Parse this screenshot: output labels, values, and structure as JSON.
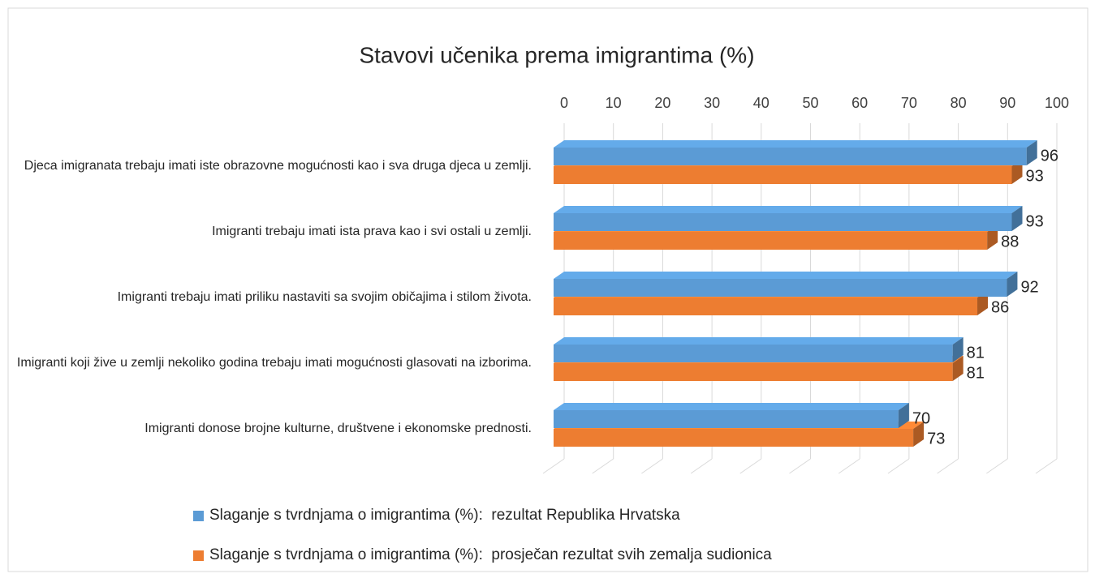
{
  "chart_data": {
    "type": "bar3d_horizontal",
    "title": "Stavovi učenika prema imigrantima (%)",
    "categories": [
      "Djeca imigranata trebaju imati iste obrazovne mogućnosti kao i sva druga djeca u zemlji.",
      "Imigranti trebaju imati ista prava kao i svi ostali u zemlji.",
      "Imigranti trebaju imati priliku nastaviti sa svojim običajima i stilom života.",
      "Imigranti koji žive u zemlji nekoliko godina trebaju imati mogućnosti glasovati na izborima.",
      "Imigranti donose brojne kulturne, društvene i ekonomske prednosti."
    ],
    "series": [
      {
        "name": "Slaganje s tvrdnjama o imigrantima (%):  rezultat Republika Hrvatska",
        "color": "#5b9bd5",
        "values": [
          96,
          93,
          92,
          81,
          70
        ]
      },
      {
        "name": "Slaganje s tvrdnjama o imigrantima (%):  prosječan rezultat svih zemalja sudionica",
        "color": "#ed7d31",
        "values": [
          93,
          88,
          86,
          81,
          73
        ]
      }
    ],
    "xlim": [
      0,
      100
    ],
    "xticks": [
      0,
      10,
      20,
      30,
      40,
      50,
      60,
      70,
      80,
      90,
      100
    ],
    "grid": true,
    "legend": "bottom"
  }
}
